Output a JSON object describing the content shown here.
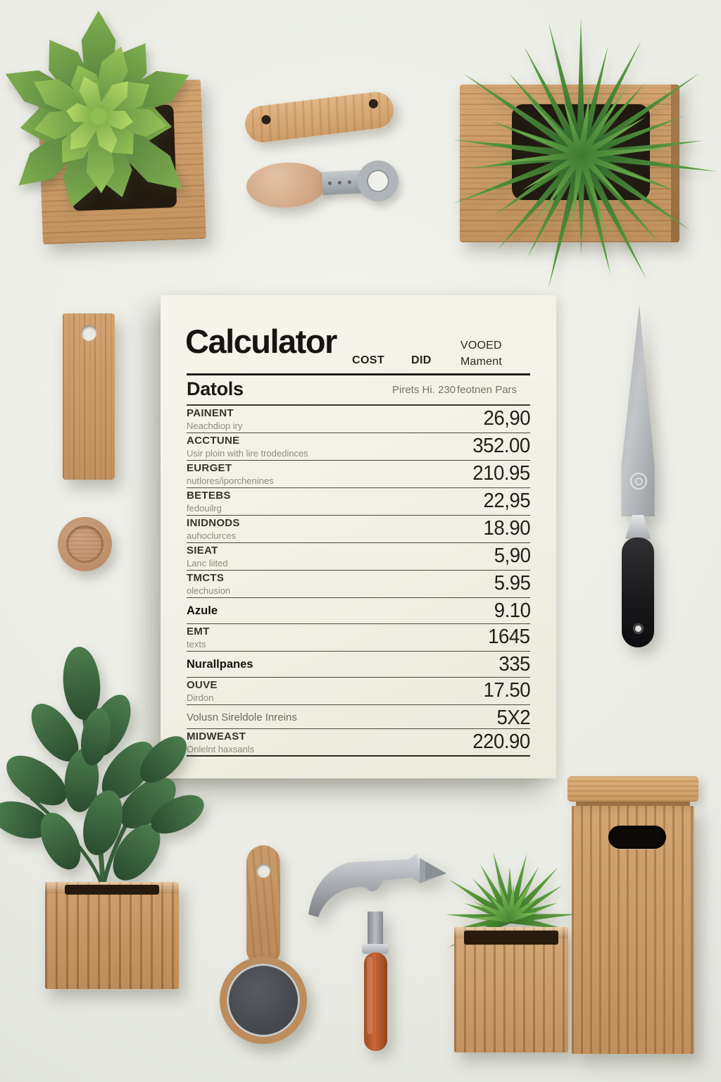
{
  "document": {
    "header": {
      "title": "Calculator",
      "col_cost": "COST",
      "col_did": "DID",
      "col_vooed_line1": "VOOED",
      "col_vooed_line2": "Mament"
    },
    "subheader": {
      "left": "Datols",
      "mid": "Pirets Hi. 230",
      "right": "feotnen Pars"
    },
    "rows": [
      {
        "label": "PAINENT",
        "sub": "Neachdiop iry",
        "value": "26,90"
      },
      {
        "label": "ACCTUNE",
        "sub": "Usir ploin with lire trodedinces",
        "value": "352.00"
      },
      {
        "label": "EURGET",
        "sub": "nutlores/iporchenines",
        "value": "210.95"
      },
      {
        "label": "BETEBS",
        "sub": "fedouilrg",
        "value": "22,95"
      },
      {
        "label": "INIDNODS",
        "sub": "auhoclurces",
        "value": "18.90"
      },
      {
        "label": "SIEAT",
        "sub": "Lanc liited",
        "value": "5,90"
      },
      {
        "label": "TMCTS",
        "sub": "olechusion",
        "value": "5.95"
      },
      {
        "label": "Azule",
        "sub": "",
        "value": "9.10",
        "bold": true
      },
      {
        "label": "EMT",
        "sub": "texts",
        "value": "1645"
      },
      {
        "label": "Nurallpanes",
        "sub": "",
        "value": "335",
        "bold": true
      },
      {
        "label": "OUVE",
        "sub": "Dirdon",
        "value": "17.50"
      },
      {
        "label": "",
        "sub": "Volusn Sireldole Inreins",
        "value": "5X2",
        "gray": true
      },
      {
        "label": "MIDWEAST",
        "sub": "Onlelnt haxsanls",
        "value": "220.90"
      }
    ]
  },
  "objects": {
    "top_left_planter": "wooden cube planter with green succulent rosette",
    "wooden_handle": "wooden tool handle with two holes",
    "bottle_opener": "wooden-handled bottle opener with metal ring",
    "top_right_planter": "wooden wall planter with spiky air plant",
    "wooden_tag": "wooden hanging tag with hole",
    "wooden_disc": "round wooden knob",
    "knife": "kitchen knife, gray blade, black handle",
    "leafy_plant": "dark green leafy plant in square wooden pot",
    "hand_mirror": "wooden hand mirror with dark round face",
    "hammer": "claw hammer with orange handle",
    "small_succulent": "small spiky succulent in wooden cube pot",
    "storage_box": "tall wooden storage box with lid and handle cutout"
  },
  "colors": {
    "background": "#eaece5",
    "paper": "#f4f2e7",
    "wood": "#c79a68",
    "soil": "#241a11",
    "leaf_green": "#5d8c3f",
    "spike_green": "#4f8f3a",
    "handle_orange": "#b85c30",
    "blade_gray": "#b3b7bb",
    "ink": "#1e1d17"
  }
}
